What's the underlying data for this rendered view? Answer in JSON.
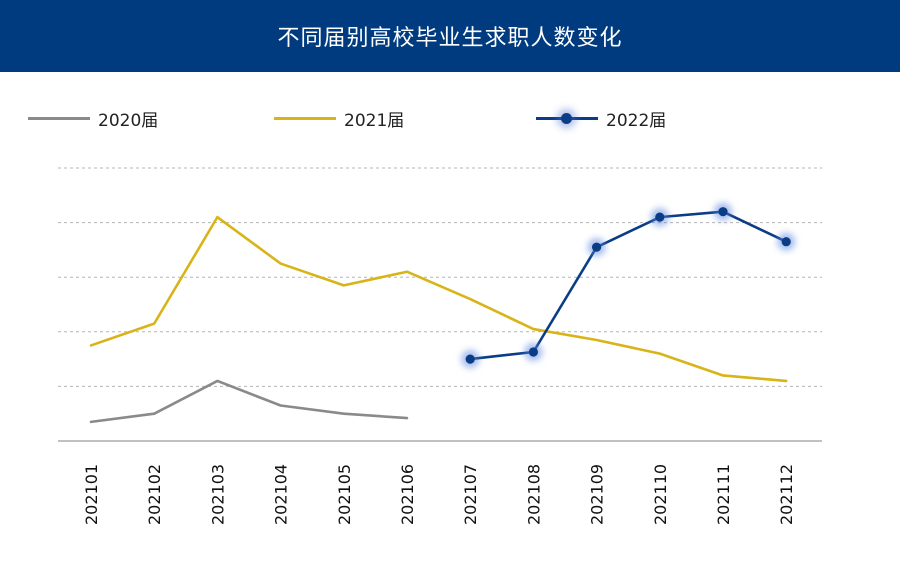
{
  "header": {
    "title": "不同届别高校毕业生求职人数变化"
  },
  "colors": {
    "header_bg": "#003b7f",
    "series_2020": "#8a8a8a",
    "series_2021": "#d8b418",
    "series_2022": "#0b3d86",
    "grid": "#b5b5b5",
    "axis": "#9a9a9a"
  },
  "legend": {
    "items": [
      {
        "label": "2020届",
        "color": "#8a8a8a",
        "marker": "none"
      },
      {
        "label": "2021届",
        "color": "#d8b418",
        "marker": "none"
      },
      {
        "label": "2022届",
        "color": "#0b3d86",
        "marker": "dot"
      }
    ]
  },
  "chart_data": {
    "type": "line",
    "categories": [
      "202101",
      "202102",
      "202103",
      "202104",
      "202105",
      "202106",
      "202107",
      "202108",
      "202109",
      "202110",
      "202111",
      "202112"
    ],
    "ylim": [
      0,
      5
    ],
    "grid": true,
    "legend_position": "top",
    "series": [
      {
        "name": "2020届",
        "color": "#8a8a8a",
        "marker": false,
        "values": [
          0.35,
          0.5,
          1.1,
          0.65,
          0.5,
          0.42,
          null,
          null,
          null,
          null,
          null,
          null
        ]
      },
      {
        "name": "2021届",
        "color": "#d8b418",
        "marker": false,
        "values": [
          1.75,
          2.15,
          4.1,
          3.25,
          2.85,
          3.1,
          2.6,
          2.05,
          1.85,
          1.6,
          1.2,
          1.1
        ]
      },
      {
        "name": "2022届",
        "color": "#0b3d86",
        "marker": true,
        "values": [
          null,
          null,
          null,
          null,
          null,
          null,
          1.5,
          1.63,
          3.55,
          4.1,
          4.2,
          3.65
        ]
      }
    ]
  }
}
